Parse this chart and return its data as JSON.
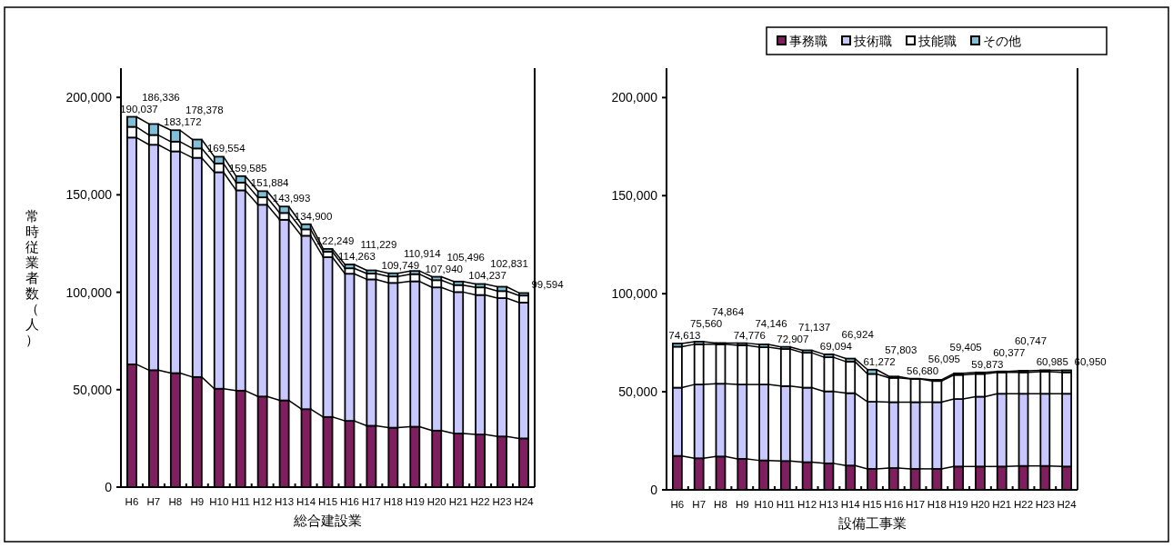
{
  "chart_data": [
    {
      "type": "bar",
      "stacked": true,
      "xlabel": "総合建設業",
      "ylabel": "常時従業者数（人）",
      "categories": [
        "H6",
        "H7",
        "H8",
        "H9",
        "H10",
        "H11",
        "H12",
        "H13",
        "H14",
        "H15",
        "H16",
        "H17",
        "H18",
        "H19",
        "H20",
        "H21",
        "H22",
        "H23",
        "H24"
      ],
      "series": [
        {
          "color": "#7f1f5f",
          "values": [
            63000,
            60000,
            58500,
            56500,
            50500,
            49500,
            46500,
            44500,
            40000,
            36000,
            34000,
            31500,
            30500,
            31000,
            29000,
            27500,
            27000,
            26000,
            25000
          ]
        },
        {
          "color": "#c8c8ff",
          "values": [
            116400,
            115700,
            113800,
            112500,
            111100,
            102800,
            98400,
            92700,
            89000,
            82000,
            75500,
            75100,
            74300,
            74600,
            73500,
            72600,
            71600,
            71000,
            69700
          ]
        },
        {
          "color": "#ffffff",
          "values": [
            5500,
            5000,
            5000,
            4800,
            4500,
            4000,
            3800,
            3500,
            3300,
            2800,
            2800,
            3000,
            3300,
            3700,
            3700,
            3600,
            3900,
            3600,
            3600
          ]
        },
        {
          "color": "#7fc0d8",
          "values": [
            5137,
            5636,
            5872,
            4578,
            3454,
            3285,
            3184,
            3293,
            2600,
            1449,
            1963,
            1629,
            1649,
            1614,
            1740,
            1796,
            1737,
            2231,
            1294
          ]
        }
      ],
      "totals": [
        "190,037",
        "186,336",
        "183,172",
        "178,378",
        "169,554",
        "159,585",
        "151,884",
        "143,993",
        "134,900",
        "122,249",
        "114,263",
        "111,229",
        "109,749",
        "110,914",
        "107,940",
        "105,496",
        "104,237",
        "102,831",
        "99,594"
      ],
      "ylim": [
        0,
        215000
      ],
      "yticks": [
        0,
        {
          "value": 50000,
          "label": "50,000"
        },
        {
          "value": 100000,
          "label": "100,000"
        },
        {
          "value": 150000,
          "label": "150,000"
        },
        {
          "value": 200000,
          "label": "200,000"
        }
      ],
      "grid": false
    },
    {
      "type": "bar",
      "stacked": true,
      "xlabel": "設備工事業",
      "categories": [
        "H6",
        "H7",
        "H8",
        "H9",
        "H10",
        "H11",
        "H12",
        "H13",
        "H14",
        "H15",
        "H16",
        "H17",
        "H18",
        "H19",
        "H20",
        "H21",
        "H22",
        "H23",
        "H24"
      ],
      "series": [
        {
          "name": "事務職",
          "color": "#7f1f5f",
          "values": [
            17300,
            16100,
            17000,
            15800,
            15000,
            14700,
            14100,
            13500,
            12400,
            10700,
            11100,
            10700,
            10700,
            11900,
            11900,
            11900,
            12200,
            12200,
            11900
          ]
        },
        {
          "name": "技術職",
          "color": "#c8c8ff",
          "values": [
            34800,
            37600,
            37100,
            37900,
            38700,
            38200,
            38000,
            36700,
            36900,
            34200,
            33600,
            34000,
            34000,
            34400,
            35600,
            37100,
            36800,
            36800,
            37100
          ]
        },
        {
          "name": "技能職",
          "color": "#ffffff",
          "values": [
            20900,
            20500,
            20100,
            20000,
            19000,
            18900,
            17800,
            17400,
            16100,
            14200,
            12400,
            11800,
            10800,
            12300,
            11600,
            10900,
            10900,
            11200,
            10900
          ]
        },
        {
          "name": "その他",
          "color": "#7fc0d8",
          "values": [
            1613,
            1360,
            664,
            1076,
            1446,
            1107,
            1237,
            1494,
            1524,
            2172,
            703,
            180,
            595,
            805,
            773,
            477,
            847,
            785,
            1050
          ]
        }
      ],
      "totals": [
        "74,613",
        "75,560",
        "74,864",
        "74,776",
        "74,146",
        "72,907",
        "71,137",
        "69,094",
        "66,924",
        "61,272",
        "57,803",
        "56,680",
        "56,095",
        "59,405",
        "59,873",
        "60,377",
        "60,747",
        "60,985",
        "60,950"
      ],
      "ylim": [
        0,
        215000
      ],
      "yticks": [
        0,
        {
          "value": 50000,
          "label": "50,000"
        },
        {
          "value": 100000,
          "label": "100,000"
        },
        {
          "value": 150000,
          "label": "150,000"
        },
        {
          "value": 200000,
          "label": "200,000"
        }
      ],
      "grid": false,
      "legend": "top"
    }
  ]
}
